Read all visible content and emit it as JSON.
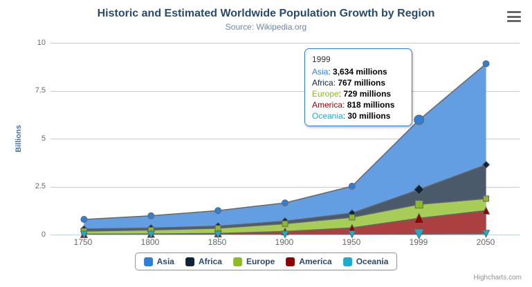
{
  "chart_data": {
    "type": "area",
    "stacking": "normal",
    "title": "Historic and Estimated Worldwide Population Growth by Region",
    "subtitle": "Source: Wikipedia.org",
    "xlabel": "",
    "ylabel": "Billions",
    "ylim": [
      0,
      10
    ],
    "ytick_values": [
      0,
      2.5,
      5,
      7.5,
      10
    ],
    "ytick_labels": [
      "0",
      "2.5",
      "5",
      "7.5",
      "10"
    ],
    "categories": [
      "1750",
      "1800",
      "1850",
      "1900",
      "1950",
      "1999",
      "2050"
    ],
    "values_unit": "millions",
    "grid": true,
    "legend_position": "bottom",
    "hover_point_index": 5,
    "series": [
      {
        "name": "Asia",
        "color": "#2f7ed8",
        "fill": "#639ee2",
        "marker": "circle",
        "values": [
          502,
          635,
          809,
          947,
          1402,
          3634,
          5268
        ]
      },
      {
        "name": "Africa",
        "color": "#0d233a",
        "fill": "#4a5a6b",
        "marker": "diamond",
        "values": [
          106,
          107,
          111,
          133,
          221,
          767,
          1766
        ]
      },
      {
        "name": "Europe",
        "color": "#8bbc21",
        "fill": "#a8cc58",
        "marker": "square",
        "values": [
          163,
          203,
          276,
          408,
          547,
          729,
          628
        ]
      },
      {
        "name": "America",
        "color": "#910000",
        "fill": "#ac4040",
        "marker": "triangle",
        "values": [
          18,
          31,
          54,
          156,
          339,
          818,
          1201
        ]
      },
      {
        "name": "Oceania",
        "color": "#1aadce",
        "fill": "#53c2da",
        "marker": "triangle-down",
        "values": [
          2,
          2,
          2,
          6,
          13,
          30,
          46
        ]
      }
    ]
  },
  "tooltip": {
    "header": "1999",
    "rows": [
      {
        "label": "Asia",
        "value": "3,634 millions"
      },
      {
        "label": "Africa",
        "value": "767 millions"
      },
      {
        "label": "Europe",
        "value": "729 millions"
      },
      {
        "label": "America",
        "value": "818 millions"
      },
      {
        "label": "Oceania",
        "value": "30 millions"
      }
    ]
  },
  "credits": {
    "label": "Highcharts.com"
  },
  "colors": {
    "title": "#274b6d",
    "subtitle": "#6d869f",
    "y_axis_title": "#4572a7",
    "axis_labels": "#666666",
    "grid_line": "#c8c8c8",
    "axis_line": "#c0d0e0",
    "area_outline": "#666666",
    "tooltip_border": "#2f7ed8",
    "legend_border": "#909090",
    "export_icon": "#666666"
  }
}
